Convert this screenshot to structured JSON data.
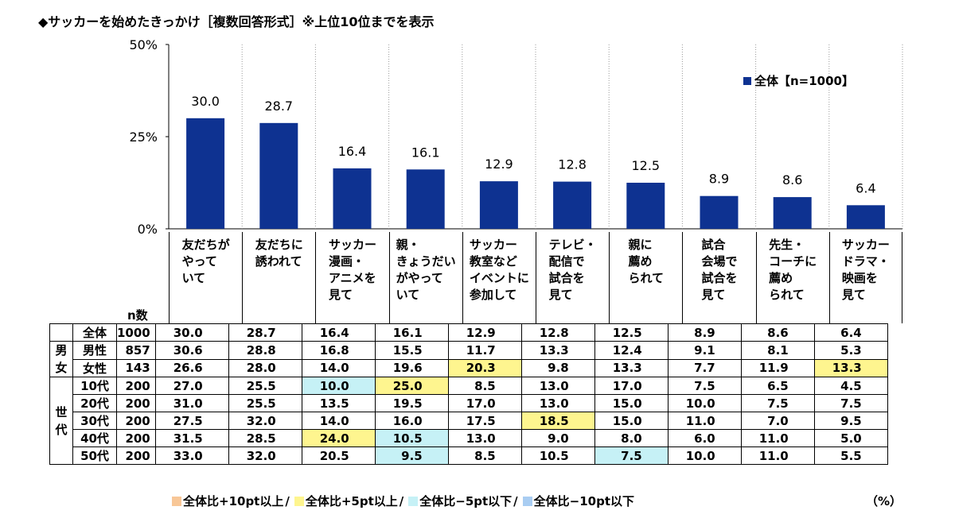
{
  "title": "◆サッカーを始めたきっかけ［複数回答形式］※上位10位までを表示",
  "chart_data": {
    "type": "bar",
    "categories": [
      "友だちが\nやって\nいて",
      "友だちに\n誘われて",
      "サッカー\n漫画・\nアニメを\n見て",
      "親・\nきょうだい\nがやって\nいて",
      "サッカー\n教室など\nイベントに\n参加して",
      "テレビ・\n配信で\n試合を\n見て",
      "親に\n薦め\nられて",
      "試合\n会場で\n試合を\n見て",
      "先生・\nコーチに\n薦め\nられて",
      "サッカー\nドラマ・\n映画を\n見て"
    ],
    "series": [
      {
        "name": "全体【n=1000】",
        "values": [
          30.0,
          28.7,
          16.4,
          16.1,
          12.9,
          12.8,
          12.5,
          8.9,
          8.6,
          6.4
        ]
      }
    ],
    "value_labels": [
      "30.0",
      "28.7",
      "16.4",
      "16.1",
      "12.9",
      "12.8",
      "12.5",
      "8.9",
      "8.6",
      "6.4"
    ],
    "yticks": [
      "50%",
      "25%",
      "0%"
    ],
    "ylim": [
      0,
      50
    ],
    "bar_color": "#0e3291",
    "legend_position": "top-right"
  },
  "table": {
    "n_header": "n数",
    "rows": [
      {
        "group": "",
        "label": "全体",
        "n": "1000",
        "values": [
          "30.0",
          "28.7",
          "16.4",
          "16.1",
          "12.9",
          "12.8",
          "12.5",
          "8.9",
          "8.6",
          "6.4"
        ],
        "hl": [
          "",
          "",
          "",
          "",
          "",
          "",
          "",
          "",
          "",
          ""
        ]
      },
      {
        "group": "男女",
        "label": "男性",
        "n": "857",
        "values": [
          "30.6",
          "28.8",
          "16.8",
          "15.5",
          "11.7",
          "13.3",
          "12.4",
          "9.1",
          "8.1",
          "5.3"
        ],
        "hl": [
          "",
          "",
          "",
          "",
          "",
          "",
          "",
          "",
          "",
          ""
        ]
      },
      {
        "group": "",
        "label": "女性",
        "n": "143",
        "values": [
          "26.6",
          "28.0",
          "14.0",
          "19.6",
          "20.3",
          "9.8",
          "13.3",
          "7.7",
          "11.9",
          "13.3"
        ],
        "hl": [
          "",
          "",
          "",
          "",
          "up5",
          "",
          "",
          "",
          "",
          "up5"
        ]
      },
      {
        "group": "世代",
        "label": "10代",
        "n": "200",
        "values": [
          "27.0",
          "25.5",
          "10.0",
          "25.0",
          "8.5",
          "13.0",
          "17.0",
          "7.5",
          "6.5",
          "4.5"
        ],
        "hl": [
          "",
          "",
          "dn5",
          "up5",
          "",
          "",
          "",
          "",
          "",
          ""
        ]
      },
      {
        "group": "",
        "label": "20代",
        "n": "200",
        "values": [
          "31.0",
          "25.5",
          "13.5",
          "19.5",
          "17.0",
          "13.0",
          "15.0",
          "10.0",
          "7.5",
          "7.5"
        ],
        "hl": [
          "",
          "",
          "",
          "",
          "",
          "",
          "",
          "",
          "",
          ""
        ]
      },
      {
        "group": "",
        "label": "30代",
        "n": "200",
        "values": [
          "27.5",
          "32.0",
          "14.0",
          "16.0",
          "17.5",
          "18.5",
          "15.0",
          "11.0",
          "7.0",
          "9.5"
        ],
        "hl": [
          "",
          "",
          "",
          "",
          "",
          "up5",
          "",
          "",
          "",
          ""
        ]
      },
      {
        "group": "",
        "label": "40代",
        "n": "200",
        "values": [
          "31.5",
          "28.5",
          "24.0",
          "10.5",
          "13.0",
          "9.0",
          "8.0",
          "6.0",
          "11.0",
          "5.0"
        ],
        "hl": [
          "",
          "",
          "up5",
          "dn5",
          "",
          "",
          "",
          "",
          "",
          ""
        ]
      },
      {
        "group": "",
        "label": "50代",
        "n": "200",
        "values": [
          "33.0",
          "32.0",
          "20.5",
          "9.5",
          "8.5",
          "10.5",
          "7.5",
          "10.0",
          "11.0",
          "5.5"
        ],
        "hl": [
          "",
          "",
          "",
          "dn5",
          "",
          "",
          "dn5",
          "",
          "",
          ""
        ]
      }
    ],
    "group_labels": {
      "gender": "男女",
      "age": "世代"
    }
  },
  "legend2": [
    {
      "text": "全体比+10pt以上",
      "color": "#f8c797"
    },
    {
      "text": "全体比+5pt以上",
      "color": "#fef58f"
    },
    {
      "text": "全体比−5pt以下",
      "color": "#c6f1f6"
    },
    {
      "text": "全体比−10pt以下",
      "color": "#a9cdf2"
    }
  ],
  "legend_sep": "/",
  "unit": "（%）"
}
